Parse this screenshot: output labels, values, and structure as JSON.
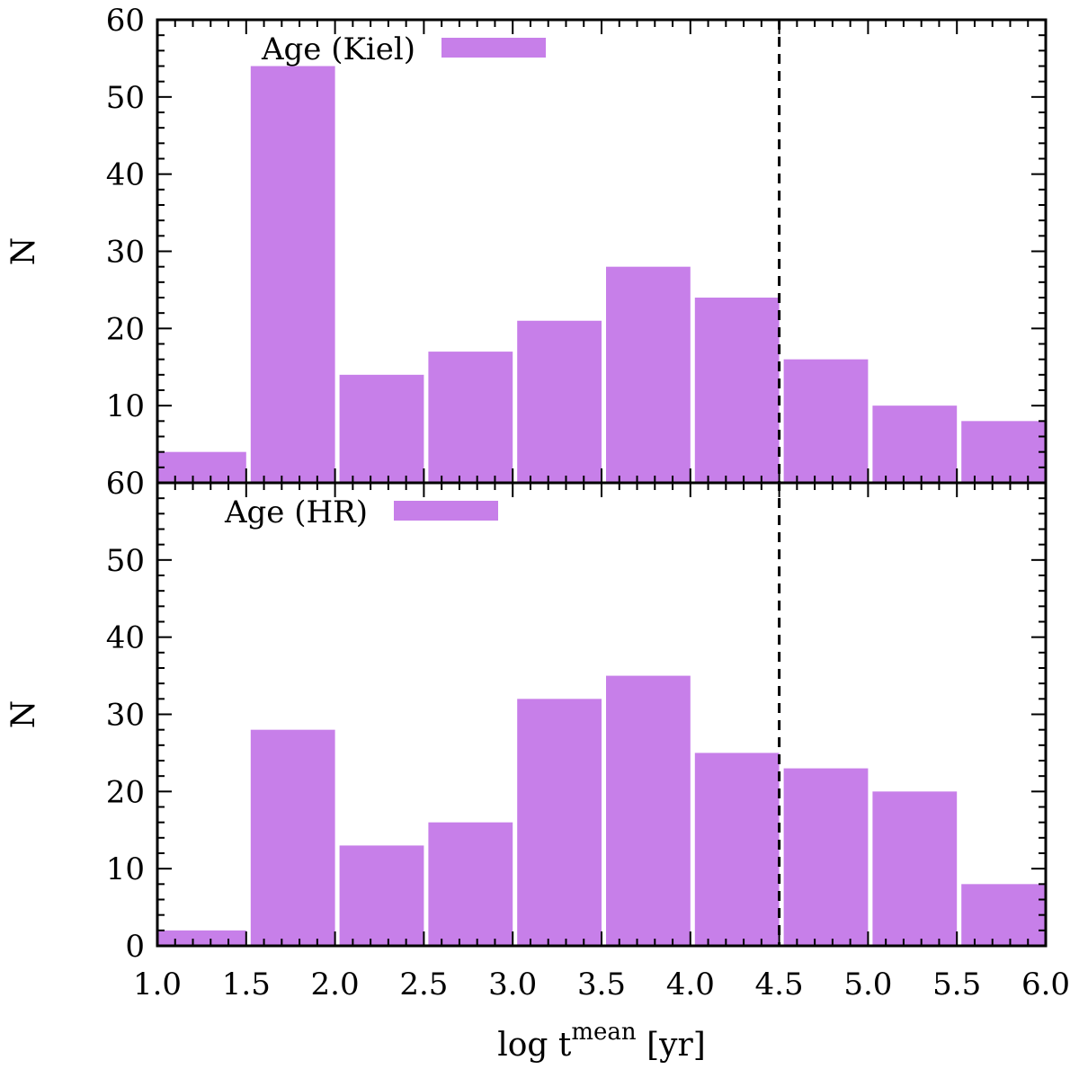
{
  "chart_data": [
    {
      "type": "bar",
      "panel": "top",
      "legend_label": "Age (Kiel)",
      "ylabel": "N",
      "xlim": [
        1.0,
        6.0
      ],
      "ylim": [
        0,
        60
      ],
      "bin_edges": [
        1.0,
        1.5,
        2.0,
        2.5,
        3.0,
        3.5,
        4.0,
        4.5,
        5.0,
        5.5,
        6.0
      ],
      "values": [
        4,
        54,
        14,
        17,
        21,
        28,
        24,
        16,
        10,
        8
      ],
      "yticks": [
        "10",
        "20",
        "30",
        "40",
        "50",
        "60"
      ],
      "color": "#c77fe9"
    },
    {
      "type": "bar",
      "panel": "bottom",
      "legend_label": "Age (HR)",
      "ylabel": "N",
      "xlabel_main": "log t",
      "xlabel_sup": "mean",
      "xlabel_unit": "[yr]",
      "xlim": [
        1.0,
        6.0
      ],
      "ylim": [
        0,
        60
      ],
      "bin_edges": [
        1.0,
        1.5,
        2.0,
        2.5,
        3.0,
        3.5,
        4.0,
        4.5,
        5.0,
        5.5,
        6.0
      ],
      "values": [
        2,
        28,
        13,
        16,
        32,
        35,
        25,
        23,
        20,
        8
      ],
      "xticks": [
        "1.0",
        "1.5",
        "2.0",
        "2.5",
        "3.0",
        "3.5",
        "4.0",
        "4.5",
        "5.0",
        "5.5",
        "6.0"
      ],
      "yticks": [
        "0",
        "10",
        "20",
        "30",
        "40",
        "50",
        "60"
      ],
      "color": "#c77fe9"
    }
  ],
  "reference_line": {
    "x": 4.5,
    "style": "dashed",
    "color": "#000000"
  }
}
